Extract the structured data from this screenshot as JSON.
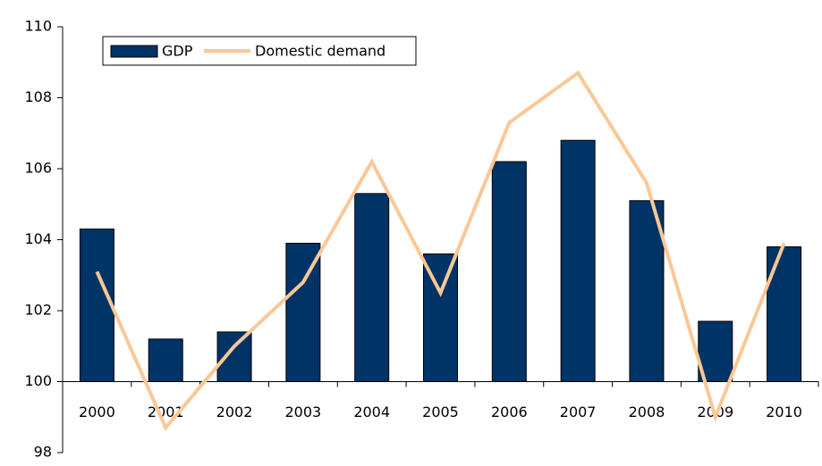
{
  "chart_data": {
    "type": "bar",
    "categories": [
      "2000",
      "2001",
      "2002",
      "2003",
      "2004",
      "2005",
      "2006",
      "2007",
      "2008",
      "2009",
      "2010"
    ],
    "series": [
      {
        "name": "GDP",
        "type": "bar",
        "color": "#003366",
        "values": [
          104.3,
          101.2,
          101.4,
          103.9,
          105.3,
          103.6,
          106.2,
          106.8,
          105.1,
          101.7,
          103.8
        ]
      },
      {
        "name": "Domestic demand",
        "type": "line",
        "color": "#fac896",
        "values": [
          103.1,
          98.7,
          101.0,
          102.8,
          106.2,
          102.5,
          107.3,
          108.7,
          105.6,
          99.0,
          103.9
        ]
      }
    ],
    "ylim": [
      98,
      110
    ],
    "yticks": [
      98,
      100,
      102,
      104,
      106,
      108,
      110
    ],
    "x_axis_at": 100,
    "legend": "top-left"
  }
}
